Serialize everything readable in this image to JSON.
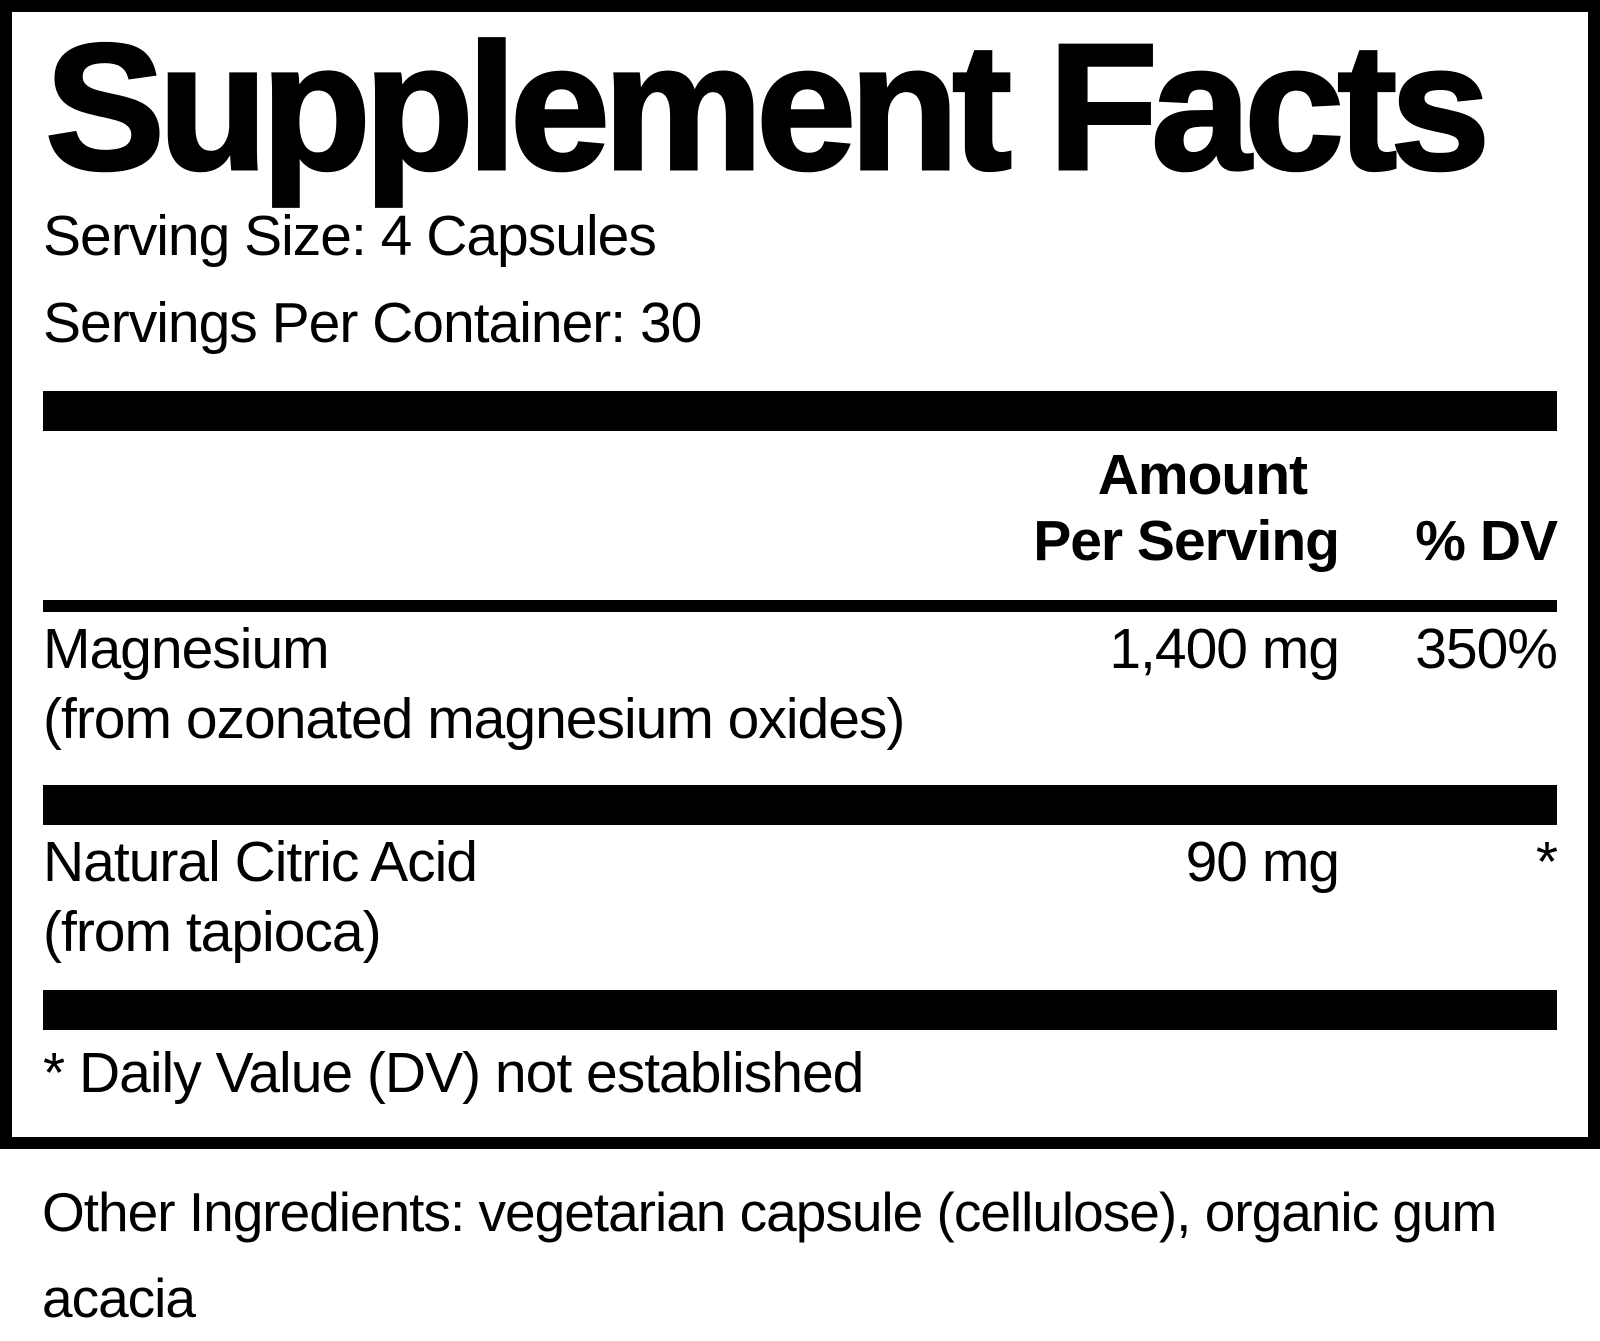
{
  "colors": {
    "ink": "#000000",
    "paper": "#ffffff"
  },
  "panel": {
    "title": "Supplement Facts",
    "serving_size_label": "Serving Size: 4 Capsules",
    "servings_per_container_label": "Servings Per Container: 30",
    "header": {
      "amount_line1": "Amount",
      "amount_line2": "Per Serving",
      "dv_label": "% DV"
    },
    "rows": [
      {
        "name": "Magnesium",
        "source": "(from ozonated magnesium oxides)",
        "amount": "1,400 mg",
        "dv": "350%"
      },
      {
        "name": "Natural Citric Acid",
        "source": "(from tapioca)",
        "amount": "90 mg",
        "dv": "*"
      }
    ],
    "footnote": "* Daily Value (DV) not established"
  },
  "other_ingredients": "Other Ingredients: vegetarian capsule (cellulose), organic gum acacia"
}
